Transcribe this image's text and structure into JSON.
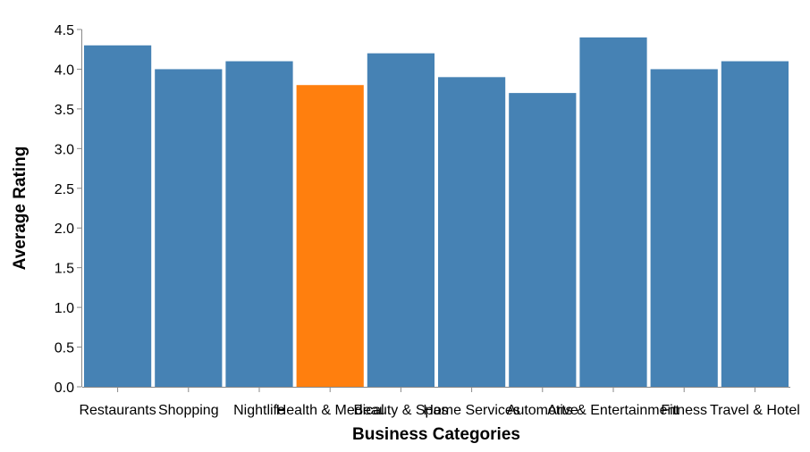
{
  "chart_data": {
    "type": "bar",
    "categories": [
      "Restaurants",
      "Shopping",
      "Nightlife",
      "Health & Medical",
      "Beauty & Spas",
      "Home Services",
      "Automotive",
      "Arts & Entertainment",
      "Fitness",
      "Travel & Hotel"
    ],
    "values": [
      4.3,
      4.0,
      4.1,
      3.8,
      4.2,
      3.9,
      3.7,
      4.4,
      4.0,
      4.1
    ],
    "highlighted_category": "Health & Medical",
    "colors": {
      "default_bar": "#4682b4",
      "highlight_bar": "#ff7f0e"
    },
    "xlabel": "Business Categories",
    "ylabel": "Average Rating",
    "ylim": [
      0,
      4.5
    ],
    "y_ticks": [
      0.0,
      0.5,
      1.0,
      1.5,
      2.0,
      2.5,
      3.0,
      3.5,
      4.0,
      4.5
    ],
    "grid": false,
    "legend": "none"
  }
}
